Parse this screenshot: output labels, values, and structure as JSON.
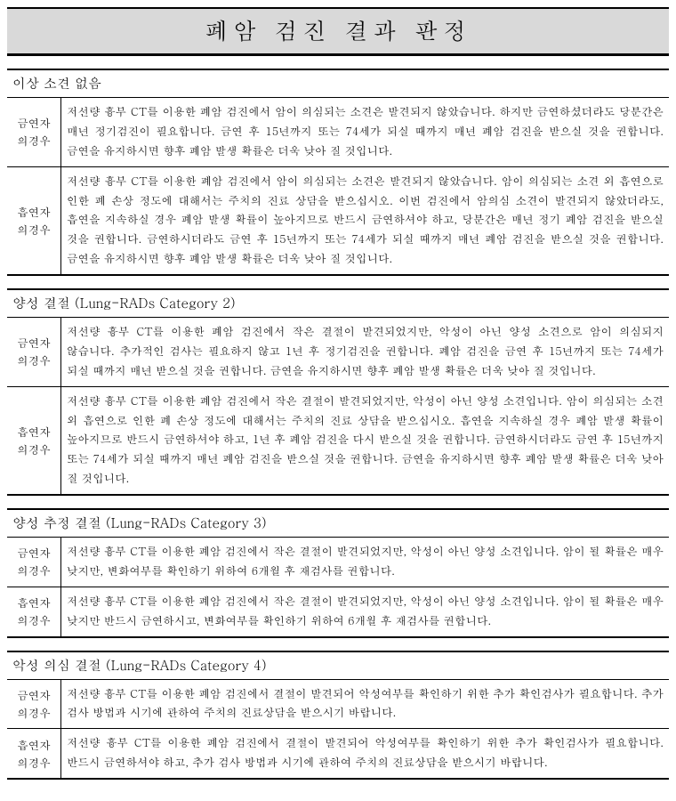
{
  "title": "폐암 검진 결과 판정",
  "labels": {
    "ex_smoker": "금연자\n의경우",
    "smoker": "흡연자\n의경우"
  },
  "sections": [
    {
      "header": "이상 소견 없음",
      "rows": [
        {
          "labelKey": "ex_smoker",
          "text": "저선량 흉부 CT를 이용한 폐암 검진에서 암이 의심되는 소견은 발견되지 않았습니다. 하지만 금연하셨더라도 당분간은 매년 정기검진이 필요합니다. 금연 후 15년까지 또는 74세가 되실 때까지 매년 폐암 검진을 받으실 것을 권합니다. 금연을 유지하시면 향후 폐암 발생 확률은 더욱 낮아 질 것입니다."
        },
        {
          "labelKey": "smoker",
          "text": "저선량 흉부 CT를 이용한 폐암 검진에서 암이 의심되는 소견은 발견되지 않았습니다. 암이 의심되는 소견 외 흡연으로 인한 폐 손상 정도에 대해서는 주치의 진료 상담을 받으십시오. 이번 검진에서 암의심 소견이 발견되지 않았더라도, 흡연을 지속하실 경우 폐암 발생 확률이 높아지므로 반드시 금연하셔야 하고, 당분간은 매년 정기 폐암 검진을 받으실 것을 권합니다. 금연하시더라도 금연 후 15년까지 또는 74세가 되실 때까지 매년 폐암 검진을 받으실 것을 권합니다. 금연을 유지하시면 향후 폐암 발생 확률은 더욱 낮아 질 것입니다."
        }
      ]
    },
    {
      "header": "양성 결절 (Lung-RADs Category 2)",
      "rows": [
        {
          "labelKey": "ex_smoker",
          "text": "저선량 흉부 CT를 이용한 폐암 검진에서 작은 결절이 발견되었지만, 악성이 아닌 양성 소견으로 암이 의심되지 않습니다. 추가적인 검사는 필요하지 않고 1년 후 정기검진을 권합니다. 폐암 검진을 금연 후 15년까지 또는 74세가 되실 때까지 매년 받으실 것을 권합니다. 금연을 유지하시면 향후 폐암 발생 확률은 더욱 낮아 질 것입니다."
        },
        {
          "labelKey": "smoker",
          "text": "저선량 흉부 CT를 이용한 폐암 검진에서 작은 결절이 발견되었지만, 악성이 아닌 양성 소견입니다. 암이 의심되는 소견 외 흡연으로 인한 폐 손상 정도에 대해서는 주치의 진료 상담을 받으십시오. 흡연을 지속하실 경우 폐암 발생 확률이 높아지므로 반드시 금연하셔야 하고, 1년 후 폐암 검진을 다시 받으실 것을 권합니다. 금연하시더라도 금연 후 15년까지 또는 74세가 되실 때까지 매년 폐암 검진을 받으실 것을 권합니다. 금연을 유지하시면 향후 폐암 발생 확률은 더욱 낮아 질 것입니다."
        }
      ]
    },
    {
      "header": "양성 추정 결절 (Lung-RADs Category 3)",
      "rows": [
        {
          "labelKey": "ex_smoker",
          "text": "저선량 흉부 CT를 이용한 폐암 검진에서 작은 결절이 발견되었지만, 악성이 아닌 양성 소견입니다. 암이 될 확률은 매우 낮지만, 변화여부를 확인하기 위하여 6개월 후 재검사를 권합니다."
        },
        {
          "labelKey": "smoker",
          "text": "저선량 흉부 CT를 이용한 폐암 검진에서 작은 결절이 발견되었지만, 악성이 아닌 양성 소견입니다. 암이 될 확률은 매우 낮지만 반드시 금연하시고, 변화여부를 확인하기 위하여 6개월 후 재검사를 권합니다."
        }
      ]
    },
    {
      "header": "악성 의심 결절 (Lung-RADs Category 4)",
      "rows": [
        {
          "labelKey": "ex_smoker",
          "text": "저선량 흉부 CT를 이용한 폐암 검진에서 결절이 발견되어 악성여부를 확인하기 위한 추가 확인검사가 필요합니다. 추가 검사 방법과 시기에 관하여 주치의 진료상담을 받으시기 바랍니다."
        },
        {
          "labelKey": "smoker",
          "text": "저선량 흉부 CT를 이용한 폐암 검진에서 결절이 발견되어 악성여부를 확인하기 위한 추가 확인검사가 필요합니다. 반드시 금연하셔야 하고, 추가 검사 방법과 시기에 관하여 주치의 진료상담을 받으시기 바랍니다."
        }
      ]
    }
  ]
}
